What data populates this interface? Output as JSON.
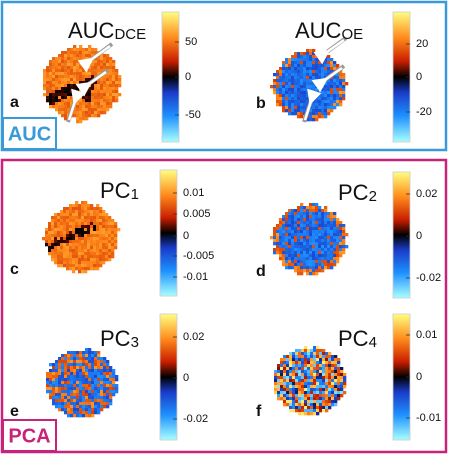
{
  "groups": [
    {
      "label": "AUC"
    },
    {
      "label": "PCA"
    }
  ],
  "panels": [
    {
      "label": "a",
      "title": {
        "main": "AUC",
        "sub": "DCE"
      },
      "colorbar_ticks": [
        50,
        0,
        -50
      ]
    },
    {
      "label": "b",
      "title": {
        "main": "AUC",
        "sub": "OE"
      },
      "colorbar_ticks": [
        20,
        0,
        -20
      ]
    },
    {
      "label": "c",
      "title": {
        "main": "PC",
        "sub": "1"
      },
      "colorbar_ticks": [
        0.01,
        0.005,
        0,
        -0.005,
        -0.01
      ]
    },
    {
      "label": "d",
      "title": {
        "main": "PC",
        "sub": "2"
      },
      "colorbar_ticks": [
        0.02,
        0,
        -0.02
      ]
    },
    {
      "label": "e",
      "title": {
        "main": "PC",
        "sub": "3"
      },
      "colorbar_ticks": [
        0.02,
        0,
        -0.02
      ]
    },
    {
      "label": "f",
      "title": {
        "main": "PC",
        "sub": "4"
      },
      "colorbar_ticks": [
        0.01,
        0,
        -0.01
      ]
    }
  ]
}
